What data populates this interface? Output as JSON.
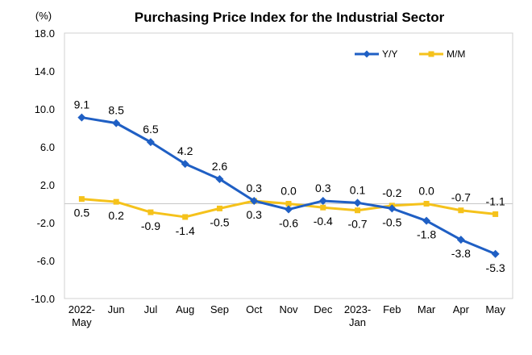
{
  "chart_data": {
    "type": "line",
    "title": "Purchasing Price Index for the Industrial Sector",
    "ylabel": "(%)",
    "xlabel": "",
    "ylim": [
      -10.0,
      18.0
    ],
    "yticks": [
      "18.0",
      "14.0",
      "10.0",
      "6.0",
      "2.0",
      "-2.0",
      "-6.0",
      "-10.0"
    ],
    "ytick_values": [
      18,
      14,
      10,
      6,
      2,
      -2,
      -6,
      -10
    ],
    "categories": [
      [
        "2022-",
        "May"
      ],
      [
        "Jun"
      ],
      [
        "Jul"
      ],
      [
        "Aug"
      ],
      [
        "Sep"
      ],
      [
        "Oct"
      ],
      [
        "Nov"
      ],
      [
        "Dec"
      ],
      [
        "2023-",
        "Jan"
      ],
      [
        "Feb"
      ],
      [
        "Mar"
      ],
      [
        "Apr"
      ],
      [
        "May"
      ]
    ],
    "legend_position": "top-right",
    "grid": false,
    "series": [
      {
        "name": "Y/Y",
        "color": "#1F5FC4",
        "marker": "diamond",
        "values": [
          9.1,
          8.5,
          6.5,
          4.2,
          2.6,
          0.3,
          -0.6,
          0.3,
          0.1,
          -0.5,
          -1.8,
          -3.8,
          -5.3
        ],
        "labels": [
          "9.1",
          "8.5",
          "6.5",
          "4.2",
          "2.6",
          "0.3",
          "-0.6",
          "0.3",
          "0.1",
          "-0.5",
          "-1.8",
          "-3.8",
          "-5.3"
        ],
        "label_pos": [
          "above",
          "above",
          "above",
          "above",
          "above",
          "above",
          "below",
          "above",
          "above",
          "below",
          "below",
          "below",
          "below"
        ]
      },
      {
        "name": "M/M",
        "color": "#F5C21B",
        "marker": "square",
        "values": [
          0.5,
          0.2,
          -0.9,
          -1.4,
          -0.5,
          0.3,
          0.0,
          -0.4,
          -0.7,
          -0.2,
          0.0,
          -0.7,
          -1.1
        ],
        "labels": [
          "0.5",
          "0.2",
          "-0.9",
          "-1.4",
          "-0.5",
          "0.3",
          "0.0",
          "-0.4",
          "-0.7",
          "-0.2",
          "0.0",
          "-0.7",
          "-1.1"
        ],
        "label_pos": [
          "below",
          "below",
          "below",
          "below",
          "below",
          "below",
          "above",
          "below",
          "below",
          "above",
          "above",
          "above",
          "above"
        ]
      }
    ]
  }
}
